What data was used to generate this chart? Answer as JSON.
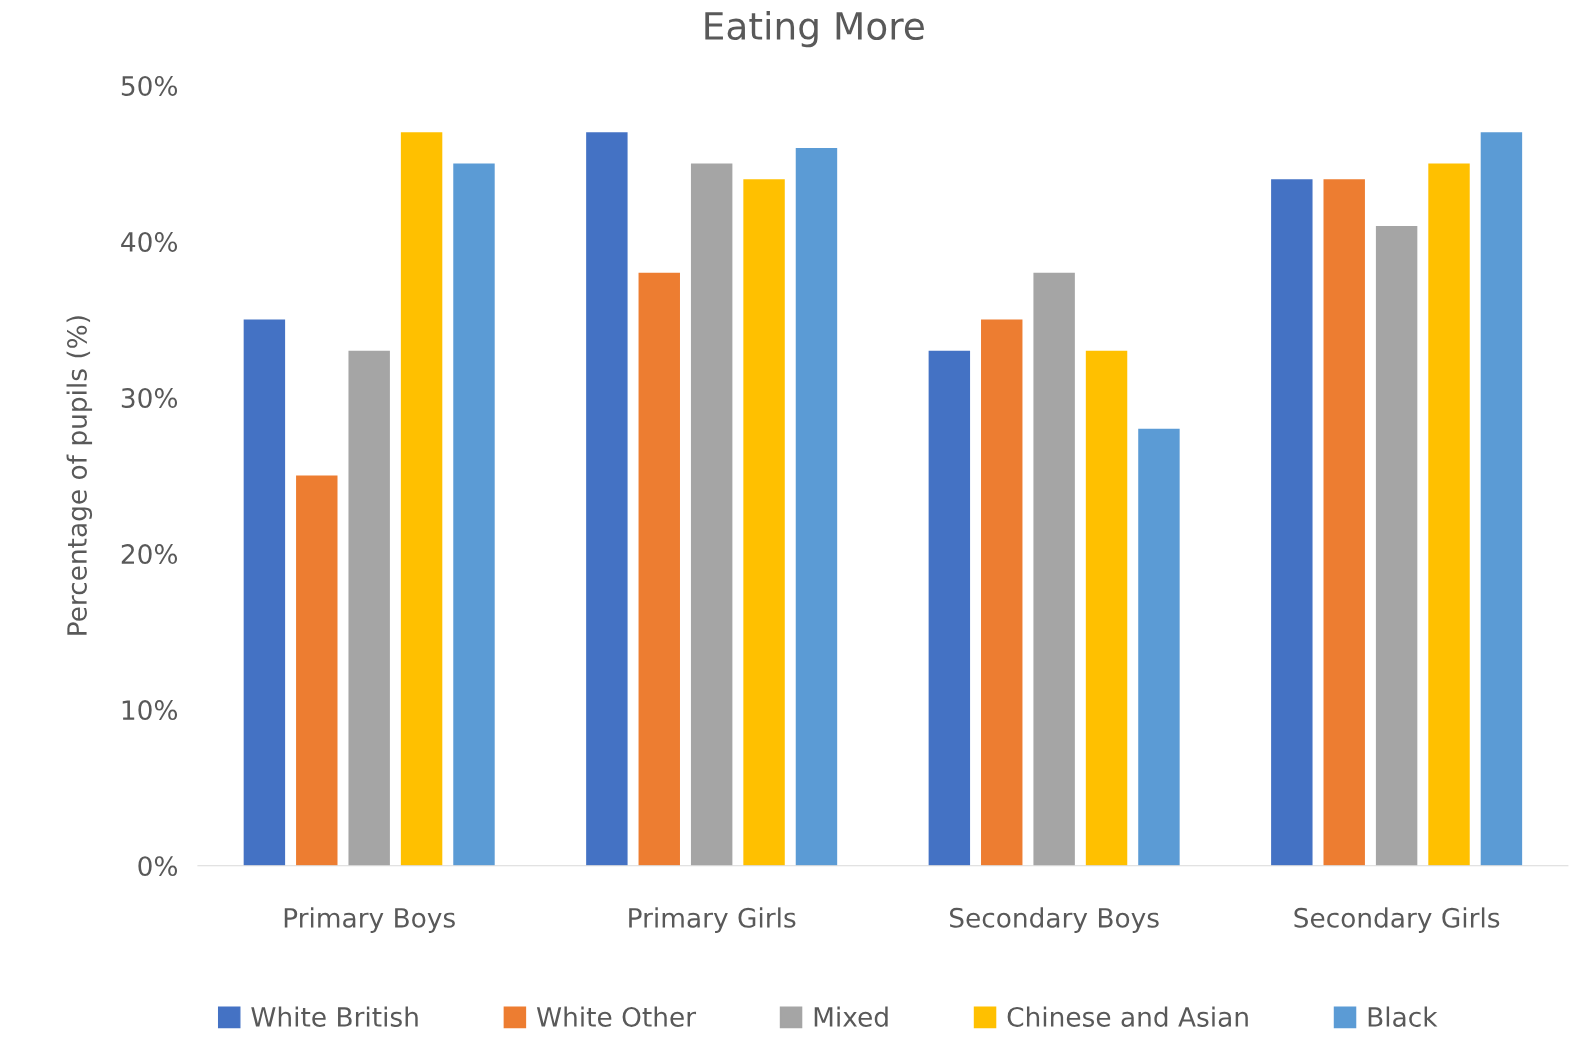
{
  "chart_data": {
    "type": "bar",
    "title": "Eating More",
    "ylabel": "Percentage of pupils (%)",
    "categories": [
      "Primary Boys",
      "Primary Girls",
      "Secondary Boys",
      "Secondary Girls"
    ],
    "series": [
      {
        "name": "White British",
        "color": "#4472c4",
        "values": [
          35,
          47,
          33,
          44
        ]
      },
      {
        "name": "White Other",
        "color": "#ed7d31",
        "values": [
          25,
          38,
          35,
          44
        ]
      },
      {
        "name": "Mixed",
        "color": "#a5a5a5",
        "values": [
          33,
          45,
          38,
          41
        ]
      },
      {
        "name": "Chinese and Asian",
        "color": "#ffc000",
        "values": [
          47,
          44,
          33,
          45
        ]
      },
      {
        "name": "Black",
        "color": "#5b9bd5",
        "values": [
          45,
          46,
          28,
          47
        ]
      }
    ],
    "ylim": [
      0,
      50
    ],
    "yticks": [
      {
        "value": 0,
        "label": "0%"
      },
      {
        "value": 10,
        "label": "10%"
      },
      {
        "value": 20,
        "label": "20%"
      },
      {
        "value": 30,
        "label": "30%"
      },
      {
        "value": 40,
        "label": "40%"
      },
      {
        "value": 50,
        "label": "50%"
      }
    ],
    "grid": false,
    "legend": "bottom"
  }
}
